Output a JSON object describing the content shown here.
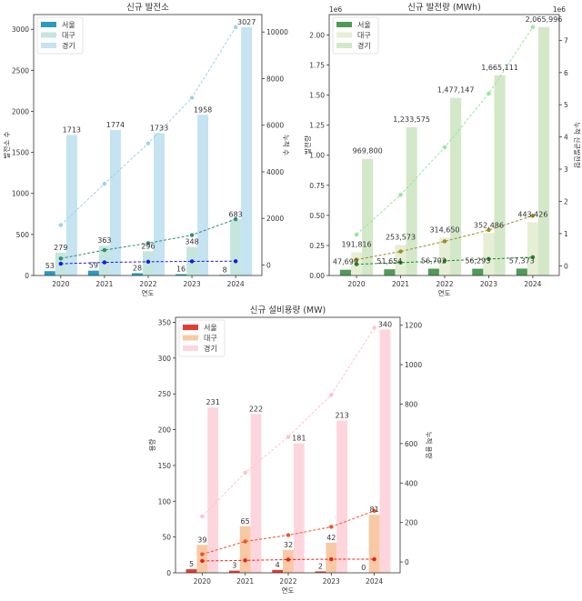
{
  "chart_data": [
    {
      "type": "bar+line",
      "title": "신규 발전소",
      "xlabel": "연도",
      "ylabel": "발전소 수",
      "y2label": "누적 수",
      "categories": [
        "2020",
        "2021",
        "2022",
        "2023",
        "2024"
      ],
      "ylim": [
        0,
        3180
      ],
      "y2lim": [
        -450,
        10750
      ],
      "yticks": [
        0,
        500,
        1000,
        1500,
        2000,
        2500,
        3000
      ],
      "y2ticks": [
        0,
        2000,
        4000,
        6000,
        8000,
        10000
      ],
      "label_format": "plain",
      "legend": "top-left",
      "grid": false,
      "series": [
        {
          "name": "서울",
          "values": [
            53,
            59,
            28,
            16,
            8
          ],
          "cumulative": [
            53,
            112,
            140,
            156,
            164
          ],
          "bar_color": "#2a9bbd",
          "line_color": "#1a1adf"
        },
        {
          "name": "대구",
          "values": [
            279,
            363,
            296,
            348,
            683
          ],
          "cumulative": [
            279,
            642,
            938,
            1286,
            1969
          ],
          "bar_color": "#c4e6df",
          "line_color": "#2e8b7a"
        },
        {
          "name": "경기",
          "values": [
            1713,
            1774,
            1733,
            1958,
            3027
          ],
          "cumulative": [
            1713,
            3487,
            5220,
            7178,
            10205
          ],
          "bar_color": "#c5e3f1",
          "line_color": "#9fd0e6"
        }
      ]
    },
    {
      "type": "bar+line",
      "title": "신규 발전량 (MWh)",
      "xlabel": "연도",
      "ylabel": "발전량",
      "y2label": "누적 신규발전량",
      "y_offset_label": "1e6",
      "y2_offset_label": "1e6",
      "categories": [
        "2020",
        "2021",
        "2022",
        "2023",
        "2024"
      ],
      "ylim": [
        0,
        2170000
      ],
      "y2lim": [
        -300000,
        7800000
      ],
      "yticks": [
        0,
        250000,
        500000,
        750000,
        1000000,
        1250000,
        1500000,
        1750000,
        2000000
      ],
      "y2ticks": [
        0,
        1000000,
        2000000,
        3000000,
        4000000,
        5000000,
        6000000,
        7000000
      ],
      "label_format": "comma",
      "legend": "top-left",
      "grid": false,
      "series": [
        {
          "name": "서울",
          "values": [
            47699,
            51654,
            56702,
            56293,
            57373
          ],
          "cumulative": [
            47699,
            99353,
            156055,
            212348,
            269721
          ],
          "bar_color": "#4f9a57",
          "line_color": "#228b22"
        },
        {
          "name": "대구",
          "values": [
            191816,
            253573,
            314650,
            352486,
            443426
          ],
          "cumulative": [
            191816,
            445389,
            760039,
            1112525,
            1555951
          ],
          "bar_color": "#e6eed6",
          "line_color": "#9a8c22"
        },
        {
          "name": "경기",
          "values": [
            969800,
            1233575,
            1477147,
            1665111,
            2065996
          ],
          "cumulative": [
            969800,
            2203375,
            3680522,
            5345633,
            7411629
          ],
          "bar_color": "#d3e8c9",
          "line_color": "#93e89a"
        }
      ]
    },
    {
      "type": "bar+line",
      "title": "신규 설비용량 (MW)",
      "xlabel": "연도",
      "ylabel": "용량",
      "y2label": "누적 용량",
      "categories": [
        "2020",
        "2021",
        "2022",
        "2023",
        "2024"
      ],
      "ylim": [
        0,
        357
      ],
      "y2lim": [
        -55,
        1240
      ],
      "yticks": [
        0,
        50,
        100,
        150,
        200,
        250,
        300,
        350
      ],
      "y2ticks": [
        0,
        200,
        400,
        600,
        800,
        1000,
        1200
      ],
      "label_format": "plain",
      "legend": "top-left",
      "grid": false,
      "series": [
        {
          "name": "서울",
          "values": [
            5,
            3,
            4,
            2,
            0
          ],
          "cumulative": [
            5,
            8,
            12,
            14,
            14
          ],
          "bar_color": "#e23d33",
          "line_color": "#e8201a"
        },
        {
          "name": "대구",
          "values": [
            39,
            65,
            32,
            42,
            81
          ],
          "cumulative": [
            39,
            104,
            136,
            178,
            259
          ],
          "bar_color": "#f8c9a4",
          "line_color": "#f0522a"
        },
        {
          "name": "경기",
          "values": [
            231,
            222,
            181,
            213,
            340
          ],
          "cumulative": [
            231,
            453,
            634,
            847,
            1187
          ],
          "bar_color": "#fdd6dd",
          "line_color": "#ffc2cc"
        }
      ]
    }
  ]
}
